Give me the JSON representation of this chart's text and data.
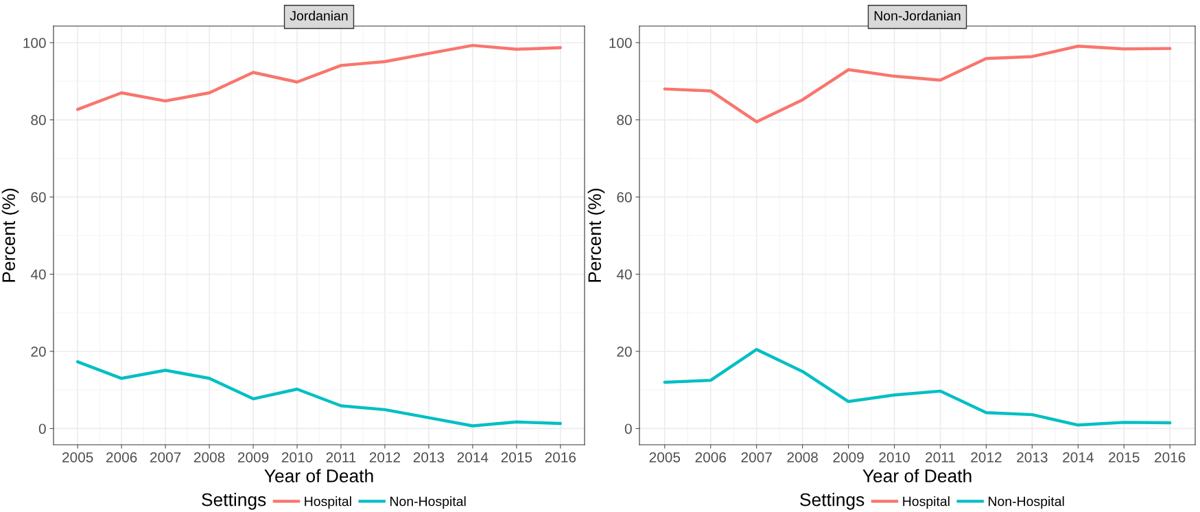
{
  "chart_data": [
    {
      "type": "line",
      "title": "Jordanian",
      "xlabel": "Year of Death",
      "ylabel": "Percent (%)",
      "legend_title": "Settings",
      "legend": "bottom",
      "grid": true,
      "x": [
        2005,
        2006,
        2007,
        2008,
        2009,
        2010,
        2011,
        2012,
        2013,
        2014,
        2015,
        2016
      ],
      "xlim": [
        2004.45,
        2016.55
      ],
      "xticks": [
        2005,
        2006,
        2007,
        2008,
        2009,
        2010,
        2011,
        2012,
        2013,
        2014,
        2015,
        2016
      ],
      "ylim": [
        -4.2,
        104.3
      ],
      "yticks": [
        0,
        20,
        40,
        60,
        80,
        100
      ],
      "series": [
        {
          "name": "Hospital",
          "color": "#f8766d",
          "values": [
            82.7,
            87,
            84.9,
            87,
            92.3,
            89.8,
            94.1,
            95.1,
            97.2,
            99.3,
            98.3,
            98.7
          ]
        },
        {
          "name": "Non-Hospital",
          "color": "#00bfc4",
          "values": [
            17.3,
            13,
            15.1,
            13,
            7.7,
            10.2,
            5.9,
            4.9,
            2.8,
            0.7,
            1.7,
            1.3
          ]
        }
      ]
    },
    {
      "type": "line",
      "title": "Non-Jordanian",
      "xlabel": "Year of Death",
      "ylabel": "Percent (%)",
      "legend_title": "Settings",
      "legend": "bottom",
      "grid": true,
      "x": [
        2005,
        2006,
        2007,
        2008,
        2009,
        2010,
        2011,
        2012,
        2013,
        2014,
        2015,
        2016
      ],
      "xlim": [
        2004.45,
        2016.55
      ],
      "xticks": [
        2005,
        2006,
        2007,
        2008,
        2009,
        2010,
        2011,
        2012,
        2013,
        2014,
        2015,
        2016
      ],
      "ylim": [
        -4.2,
        104.3
      ],
      "yticks": [
        0,
        20,
        40,
        60,
        80,
        100
      ],
      "series": [
        {
          "name": "Hospital",
          "color": "#f8766d",
          "values": [
            88,
            87.5,
            79.5,
            85.2,
            93,
            91.3,
            90.3,
            95.9,
            96.4,
            99.1,
            98.4,
            98.5
          ]
        },
        {
          "name": "Non-Hospital",
          "color": "#00bfc4",
          "values": [
            12,
            12.5,
            20.5,
            14.8,
            7,
            8.7,
            9.7,
            4.1,
            3.6,
            0.9,
            1.6,
            1.5
          ]
        }
      ]
    }
  ]
}
